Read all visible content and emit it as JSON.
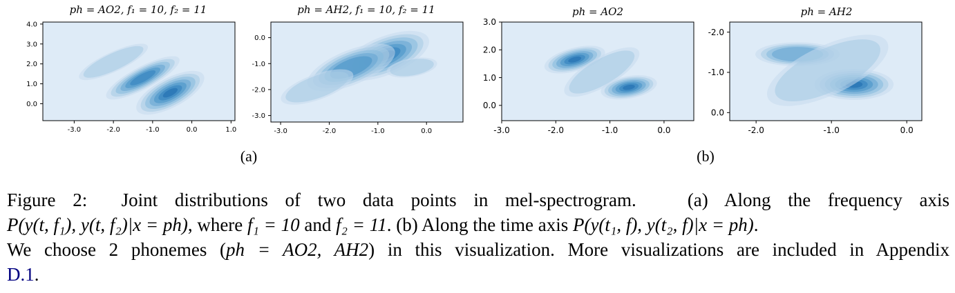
{
  "figure": {
    "panels": [
      {
        "id": "a1",
        "title": "ph = AO2, f₁ = 10, f₂ = 11",
        "x_ticks": [
          "-3.0",
          "-2.0",
          "-1.0",
          "0.0",
          "1.0"
        ],
        "y_ticks": [
          "0.0",
          "1.0",
          "2.0",
          "3.0",
          "4.0"
        ]
      },
      {
        "id": "a2",
        "title": "ph = AH2, f₁ = 10, f₂ = 11",
        "x_ticks": [
          "-3.0",
          "-2.0",
          "-1.0",
          "0.0"
        ],
        "y_ticks": [
          "0.0",
          "-1.0",
          "-2.0",
          "-3.0"
        ]
      },
      {
        "id": "b1",
        "title": "ph = AO2",
        "x_ticks": [
          "-3.0",
          "-2.0",
          "-1.0",
          "0.0"
        ],
        "y_ticks": [
          "0.0",
          "1.0",
          "2.0",
          "3.0"
        ]
      },
      {
        "id": "b2",
        "title": "ph = AH2",
        "x_ticks": [
          "-2.0",
          "-1.0",
          "0.0"
        ],
        "y_ticks": [
          "0.0",
          "-1.0",
          "-2.0"
        ]
      }
    ],
    "subcaptions": {
      "a": "(a)",
      "b": "(b)"
    }
  },
  "chart_data": [
    {
      "type": "kde_contour",
      "title": "ph = AO2, f1 = 10, f2 = 11",
      "xlim": [
        -3.8,
        1.1
      ],
      "ylim": [
        4.1,
        -0.85
      ],
      "modes": [
        {
          "x": -0.55,
          "y": 0.55,
          "sx": 0.55,
          "sy": 0.42,
          "rot": -28,
          "w": 1.0
        },
        {
          "x": -1.25,
          "y": 1.3,
          "sx": 0.6,
          "sy": 0.32,
          "rot": -28,
          "w": 0.8
        },
        {
          "x": -2.0,
          "y": 2.1,
          "sx": 0.55,
          "sy": 0.28,
          "rot": -25,
          "w": 0.35
        }
      ]
    },
    {
      "type": "kde_contour",
      "title": "ph = AH2, f1 = 10, f2 = 11",
      "xlim": [
        -3.2,
        0.75
      ],
      "ylim": [
        0.6,
        -3.25
      ],
      "modes": [
        {
          "x": -0.85,
          "y": -0.7,
          "sx": 0.55,
          "sy": 0.42,
          "rot": -22,
          "w": 1.0
        },
        {
          "x": -1.55,
          "y": -1.15,
          "sx": 0.55,
          "sy": 0.38,
          "rot": -22,
          "w": 0.75
        },
        {
          "x": -2.25,
          "y": -1.9,
          "sx": 0.45,
          "sy": 0.28,
          "rot": -20,
          "w": 0.3
        },
        {
          "x": -0.3,
          "y": -1.15,
          "sx": 0.3,
          "sy": 0.2,
          "rot": -10,
          "w": 0.25
        }
      ]
    },
    {
      "type": "kde_contour",
      "title": "ph = AO2",
      "xlim": [
        -3.0,
        0.55
      ],
      "ylim": [
        3.0,
        -0.55
      ],
      "modes": [
        {
          "x": -0.65,
          "y": 0.65,
          "sx": 0.3,
          "sy": 0.23,
          "rot": -10,
          "w": 1.0
        },
        {
          "x": -1.65,
          "y": 1.65,
          "sx": 0.33,
          "sy": 0.24,
          "rot": -15,
          "w": 0.95
        },
        {
          "x": -1.15,
          "y": 1.2,
          "sx": 0.45,
          "sy": 0.3,
          "rot": -30,
          "w": 0.25
        }
      ]
    },
    {
      "type": "kde_contour",
      "title": "ph = AH2",
      "xlim": [
        -2.35,
        0.2
      ],
      "ylim": [
        -2.25,
        0.2
      ],
      "modes": [
        {
          "x": -0.7,
          "y": -0.7,
          "sx": 0.3,
          "sy": 0.22,
          "rot": 0,
          "w": 1.0
        },
        {
          "x": -1.45,
          "y": -1.45,
          "sx": 0.32,
          "sy": 0.17,
          "rot": 0,
          "w": 0.55
        },
        {
          "x": -1.05,
          "y": -1.05,
          "sx": 0.5,
          "sy": 0.35,
          "rot": -25,
          "w": 0.25
        }
      ]
    }
  ],
  "caption": {
    "label": "Figure 2:",
    "seg1": "Joint distributions of two data points in mel-spectrogram.",
    "seg2": "(a) Along the frequency axis",
    "math1": "P(y(t, f₁), y(t, f₂)|x = ph)",
    "seg3": ", where ",
    "math2": "f₁ = 10",
    "seg4": " and ",
    "math3": "f₂ = 11",
    "seg5": ". (b) Along the time axis ",
    "math4": "P(y(t₁, f), y(t₂, f)|x = ph)",
    "seg6": ".",
    "seg7": "We choose 2 phonemes (",
    "math5": "ph = AO2, AH2",
    "seg8": ") in this visualization. More visualizations are included in Appendix",
    "link": "D.1",
    "seg9": "."
  },
  "colors": {
    "background": "#deebf7",
    "levels": [
      "#c6dbef",
      "#a6cae3",
      "#85b9dc",
      "#64a4d2",
      "#4692c7",
      "#2f7fbd",
      "#1e6aad"
    ]
  }
}
